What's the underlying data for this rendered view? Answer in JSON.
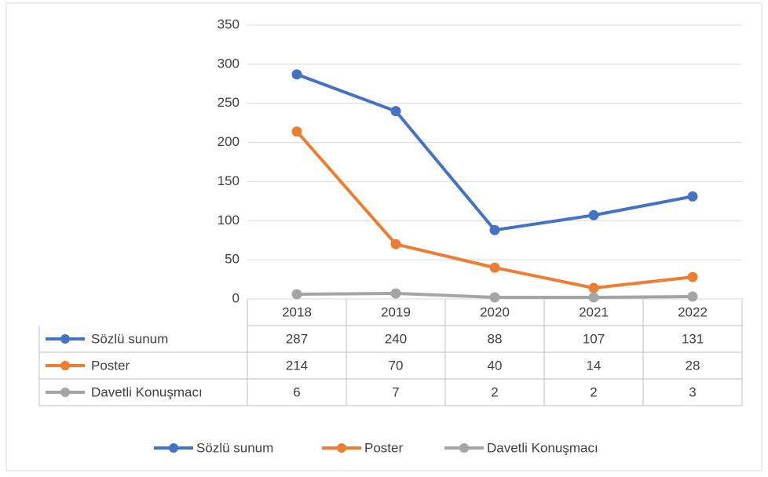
{
  "chart_data": {
    "type": "line",
    "categories": [
      "2018",
      "2019",
      "2020",
      "2021",
      "2022"
    ],
    "series": [
      {
        "name": "Sözlü sunum",
        "color": "#4472c4",
        "values": [
          287,
          240,
          88,
          107,
          131
        ]
      },
      {
        "name": "Poster",
        "color": "#ed7d31",
        "values": [
          214,
          70,
          40,
          14,
          28
        ]
      },
      {
        "name": "Davetli Konuşmacı",
        "color": "#a5a5a5",
        "values": [
          6,
          7,
          2,
          2,
          3
        ]
      }
    ],
    "ylim": [
      0,
      350
    ],
    "yticks": [
      0,
      50,
      100,
      150,
      200,
      250,
      300,
      350
    ],
    "grid": true,
    "legend": "bottom"
  }
}
